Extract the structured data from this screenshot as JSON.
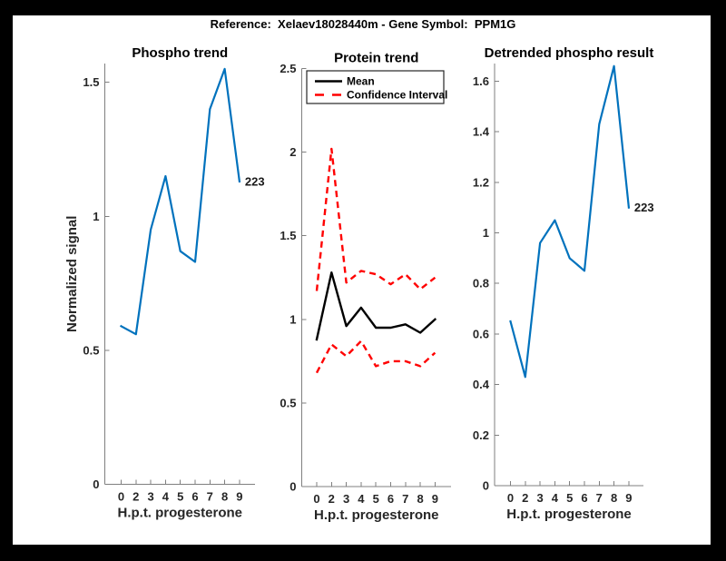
{
  "figure": {
    "title": "Reference:  Xelaev18028440m - Gene Symbol:  PPM1G",
    "background_color": "#000000",
    "panel_color": "#ffffff"
  },
  "colors": {
    "line_blue": "#0072BD",
    "line_red": "#FF0000",
    "line_black": "#000000",
    "axis_line": "#7f7f7f",
    "tick_label": "#262626",
    "legend_border": "#262626"
  },
  "chart_data": [
    {
      "type": "line",
      "title": "Phospho trend",
      "xlabel": "H.p.t. progesterone",
      "ylabel": "Normalized signal",
      "x": [
        0,
        2,
        3,
        4,
        5,
        6,
        7,
        8,
        9
      ],
      "x_ticklabels": [
        "0",
        "2",
        "3",
        "4",
        "5",
        "6",
        "7",
        "8",
        "9"
      ],
      "x_spacing": "even",
      "yticks": [
        0,
        0.5,
        1,
        1.5
      ],
      "ytick_labels": [
        "0",
        "0.5",
        "1",
        "1.5"
      ],
      "ylim": [
        0,
        1.57
      ],
      "grid": false,
      "legend": null,
      "end_label": "223",
      "series": [
        {
          "name": "Phospho signal",
          "color": "#0072BD",
          "style": "solid",
          "values": [
            0.59,
            0.56,
            0.95,
            1.15,
            0.87,
            0.83,
            1.4,
            1.55,
            1.13
          ]
        }
      ]
    },
    {
      "type": "line",
      "title": "Protein trend",
      "xlabel": "H.p.t. progesterone",
      "ylabel": "",
      "x": [
        0,
        2,
        3,
        4,
        5,
        6,
        7,
        8,
        9
      ],
      "x_ticklabels": [
        "0",
        "2",
        "3",
        "4",
        "5",
        "6",
        "7",
        "8",
        "9"
      ],
      "x_spacing": "even",
      "yticks": [
        0,
        0.5,
        1,
        1.5,
        2,
        2.5
      ],
      "ytick_labels": [
        "0",
        "0.5",
        "1",
        "1.5",
        "2",
        "2.5"
      ],
      "ylim": [
        0,
        2.5
      ],
      "grid": false,
      "end_label": null,
      "legend": {
        "position": "northwest",
        "entries": [
          {
            "label": "Mean",
            "color": "#000000",
            "style": "solid"
          },
          {
            "label": "Confidence Interval",
            "color": "#FF0000",
            "style": "dashed"
          }
        ]
      },
      "series": [
        {
          "name": "Mean",
          "color": "#000000",
          "style": "solid",
          "values": [
            0.88,
            1.28,
            0.96,
            1.07,
            0.95,
            0.95,
            0.97,
            0.92,
            1.0
          ]
        },
        {
          "name": "Confidence Interval upper",
          "color": "#FF0000",
          "style": "dashed",
          "values": [
            1.17,
            2.02,
            1.22,
            1.29,
            1.27,
            1.21,
            1.27,
            1.18,
            1.25
          ]
        },
        {
          "name": "Confidence Interval lower",
          "color": "#FF0000",
          "style": "dashed",
          "values": [
            0.68,
            0.85,
            0.78,
            0.87,
            0.72,
            0.75,
            0.75,
            0.72,
            0.8
          ]
        }
      ]
    },
    {
      "type": "line",
      "title": "Detrended phospho result",
      "xlabel": "H.p.t. progesterone",
      "ylabel": "",
      "x": [
        0,
        2,
        3,
        4,
        5,
        6,
        7,
        8,
        9
      ],
      "x_ticklabels": [
        "0",
        "2",
        "3",
        "4",
        "5",
        "6",
        "7",
        "8",
        "9"
      ],
      "x_spacing": "even",
      "yticks": [
        0,
        0.2,
        0.4,
        0.6,
        0.8,
        1,
        1.2,
        1.4,
        1.6
      ],
      "ytick_labels": [
        "0",
        "0.2",
        "0.4",
        "0.6",
        "0.8",
        "1",
        "1.2",
        "1.4",
        "1.6"
      ],
      "ylim": [
        0,
        1.67
      ],
      "grid": false,
      "legend": null,
      "end_label": "223",
      "series": [
        {
          "name": "Detrended phospho signal",
          "color": "#0072BD",
          "style": "solid",
          "values": [
            0.65,
            0.43,
            0.96,
            1.05,
            0.9,
            0.85,
            1.43,
            1.66,
            1.1
          ]
        }
      ]
    }
  ]
}
